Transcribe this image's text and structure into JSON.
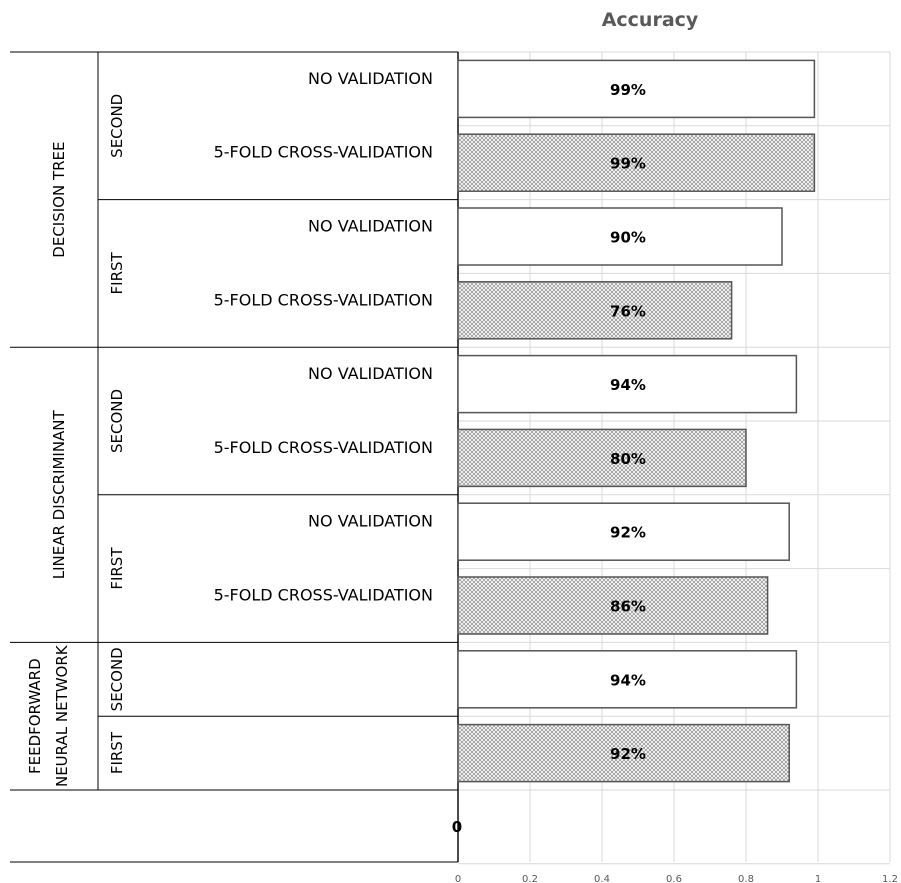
{
  "chart_data": {
    "type": "bar",
    "orientation": "horizontal",
    "title": "Accuracy",
    "xlim": [
      0,
      1.2
    ],
    "x_ticks": [
      "0",
      "0.2",
      "0.4",
      "0.6",
      "0.8",
      "1",
      "1.2"
    ],
    "grid": true,
    "zero_label": "0",
    "groups": [
      {
        "name": "DECISION TREE",
        "subgroups": [
          {
            "name": "SECOND",
            "bars": [
              {
                "label": "NO VALIDATION",
                "value": 0.99,
                "data_label": "99%",
                "pattern": "plain"
              },
              {
                "label": "5-FOLD CROSS-VALIDATION",
                "value": 0.99,
                "data_label": "99%",
                "pattern": "hatched"
              }
            ]
          },
          {
            "name": "FIRST",
            "bars": [
              {
                "label": "NO VALIDATION",
                "value": 0.9,
                "data_label": "90%",
                "pattern": "plain"
              },
              {
                "label": "5-FOLD CROSS-VALIDATION",
                "value": 0.76,
                "data_label": "76%",
                "pattern": "hatched"
              }
            ]
          }
        ]
      },
      {
        "name": "LINEAR DISCRIMINANT",
        "subgroups": [
          {
            "name": "SECOND",
            "bars": [
              {
                "label": "NO VALIDATION",
                "value": 0.94,
                "data_label": "94%",
                "pattern": "plain"
              },
              {
                "label": "5-FOLD CROSS-VALIDATION",
                "value": 0.8,
                "data_label": "80%",
                "pattern": "hatched"
              }
            ]
          },
          {
            "name": "FIRST",
            "bars": [
              {
                "label": "NO VALIDATION",
                "value": 0.92,
                "data_label": "92%",
                "pattern": "plain"
              },
              {
                "label": "5-FOLD CROSS-VALIDATION",
                "value": 0.86,
                "data_label": "86%",
                "pattern": "hatched"
              }
            ]
          }
        ]
      },
      {
        "name_lines": [
          "FEEDFORWARD",
          "NEURAL NETWORK"
        ],
        "subgroups": [
          {
            "name": "SECOND",
            "bars": [
              {
                "label": "",
                "value": 0.94,
                "data_label": "94%",
                "pattern": "plain"
              }
            ]
          },
          {
            "name": "FIRST",
            "bars": [
              {
                "label": "",
                "value": 0.92,
                "data_label": "92%",
                "pattern": "hatched"
              }
            ]
          }
        ]
      }
    ],
    "colors": {
      "bar_fill": "#ffffff",
      "bar_stroke": "#555555",
      "hatch": "#9a9a9a",
      "grid": "#d9d9d9"
    }
  }
}
